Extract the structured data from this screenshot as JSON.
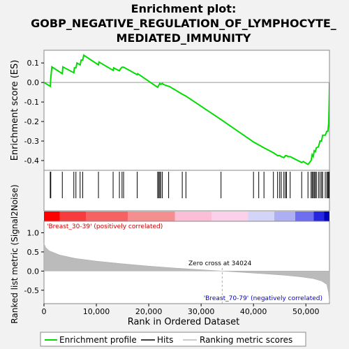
{
  "chart_data": {
    "type": "line",
    "title_line1": "Enrichment plot:",
    "title_line2": "GOBP_NEGATIVE_REGULATION_OF_LYMPHOCYTE_",
    "title_line3": "MEDIATED_IMMUNITY",
    "es_panel": {
      "ylabel": "Enrichment score (ES)",
      "ylim": [
        -0.45,
        0.165
      ],
      "yticks": [
        0.1,
        0.0,
        -0.1,
        -0.2,
        -0.3,
        -0.4
      ],
      "ytick_labels": [
        "0.1",
        "0.0",
        "-0.1",
        "-0.2",
        "-0.3",
        "-0.4"
      ],
      "x": [
        0,
        1200,
        1300,
        1500,
        3500,
        3600,
        5700,
        5800,
        6100,
        6300,
        6900,
        7100,
        7400,
        7600,
        10400,
        10500,
        13200,
        13300,
        14400,
        14600,
        14900,
        15200,
        17800,
        17900,
        21700,
        21900,
        22100,
        22300,
        22600,
        22800,
        23800,
        23900,
        26400,
        27100,
        33800,
        40000,
        41000,
        42000,
        43800,
        44600,
        45000,
        45300,
        45800,
        46100,
        46300,
        46600,
        47000,
        49200,
        49500,
        50400,
        51000,
        51200,
        51400,
        51600,
        51800,
        52000,
        52400,
        52700,
        53000,
        53200,
        53700,
        54000,
        54200,
        54350,
        54400,
        54440,
        54470,
        54500
      ],
      "y": [
        0.0,
        -0.02,
        0.025,
        0.08,
        0.045,
        0.08,
        0.05,
        0.075,
        0.075,
        0.1,
        0.09,
        0.115,
        0.115,
        0.14,
        0.09,
        0.105,
        0.062,
        0.075,
        0.06,
        0.07,
        0.078,
        0.078,
        0.04,
        0.045,
        -0.025,
        -0.015,
        -0.005,
        -0.01,
        -0.005,
        -0.01,
        -0.02,
        -0.02,
        -0.06,
        -0.07,
        -0.19,
        -0.305,
        -0.32,
        -0.335,
        -0.36,
        -0.375,
        -0.375,
        -0.38,
        -0.385,
        -0.375,
        -0.375,
        -0.38,
        -0.38,
        -0.41,
        -0.405,
        -0.42,
        -0.4,
        -0.37,
        -0.38,
        -0.35,
        -0.355,
        -0.335,
        -0.33,
        -0.3,
        -0.3,
        -0.27,
        -0.27,
        -0.25,
        -0.25,
        -0.21,
        -0.165,
        -0.115,
        -0.065,
        0.0
      ]
    },
    "hits": [
      1200,
      1300,
      3500,
      5700,
      6100,
      6900,
      7400,
      10400,
      13200,
      14400,
      14900,
      15200,
      17800,
      21700,
      21900,
      22100,
      22300,
      22600,
      23800,
      26400,
      27100,
      33800,
      40000,
      41000,
      42000,
      43800,
      44600,
      45000,
      45300,
      45800,
      46100,
      46300,
      47000,
      49200,
      50400,
      51000,
      51200,
      51400,
      51600,
      51800,
      52000,
      52400,
      52700,
      53000,
      53200,
      53700,
      54000,
      54200,
      54350,
      54440
    ],
    "bar": {
      "pos_label": "'Breast_30-39' (positively correlated)",
      "neg_label": "'Breast_70-79' (negatively correlated)",
      "colors": [
        "#ff0000",
        "#f63c3c",
        "#f46262",
        "#f58f8f",
        "#fbbed6",
        "#fbd0e9",
        "#d4d4f8",
        "#aeaef2",
        "#6e6ef0",
        "#2626e0",
        "#0000b8"
      ],
      "stops": [
        0,
        3000,
        8000,
        16000,
        25000,
        32000,
        39000,
        44000,
        48000,
        51500,
        53500,
        54500
      ]
    },
    "metric_panel": {
      "ylabel": "Ranked list metric (Signal2Noise)",
      "ylim": [
        -0.85,
        1.3
      ],
      "yticks": [
        1.0,
        0.5,
        0.0,
        -0.5
      ],
      "ytick_labels": [
        "1.0",
        "0.5",
        "0.0",
        "-0.5"
      ],
      "x": [
        0,
        300,
        1000,
        3000,
        6000,
        10000,
        15000,
        20000,
        25000,
        30000,
        34024,
        38000,
        42000,
        46000,
        49000,
        51500,
        53000,
        54000,
        54300,
        54500
      ],
      "y": [
        0.72,
        0.62,
        0.53,
        0.42,
        0.33,
        0.26,
        0.19,
        0.13,
        0.08,
        0.035,
        0.0,
        -0.035,
        -0.07,
        -0.11,
        -0.15,
        -0.2,
        -0.26,
        -0.35,
        -0.55,
        -0.8
      ],
      "zero_cross_label": "Zero cross at 34024",
      "zero_cross": 34024
    },
    "xlabel": "Rank in Ordered Dataset",
    "xlim": [
      0,
      54500
    ],
    "xticks": [
      0,
      10000,
      20000,
      30000,
      40000,
      50000
    ],
    "xtick_labels": [
      "0",
      "10,000",
      "20,000",
      "30,000",
      "40,000",
      "50,000"
    ],
    "legend": {
      "placement": "bottom",
      "items": [
        {
          "label": "Enrichment profile",
          "color": "#00dd00"
        },
        {
          "label": "Hits",
          "color": "#000000"
        },
        {
          "label": "Ranking metric scores",
          "color": "#bbbbbb"
        }
      ]
    },
    "colors": {
      "profile": "#00dd00",
      "hits": "#000000",
      "metric": "#bbbbbb",
      "pos_label": "#cc0000",
      "neg_label": "#0000cc"
    }
  }
}
